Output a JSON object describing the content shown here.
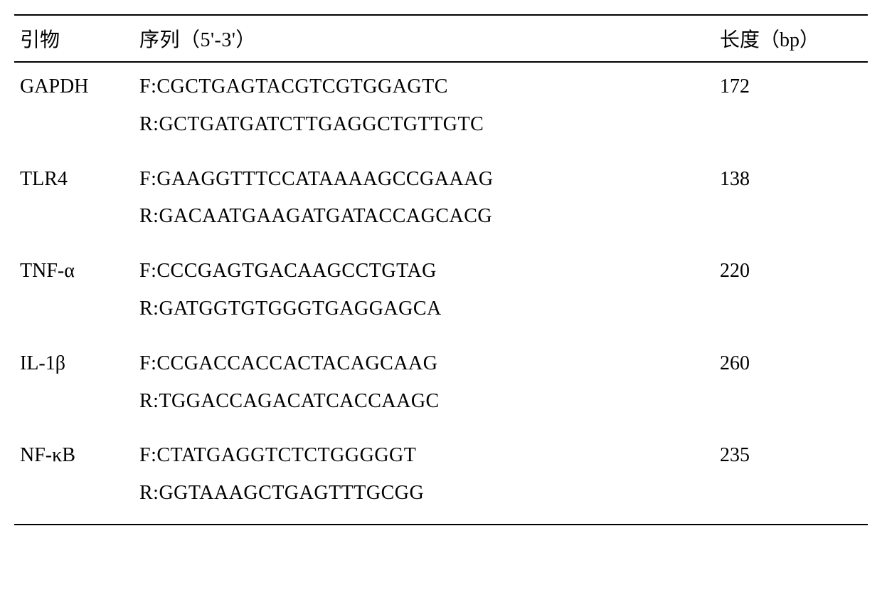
{
  "table": {
    "headers": {
      "primer": "引物",
      "sequence": "序列（5'-3'）",
      "length": "长度（bp）"
    },
    "rows": [
      {
        "primer": "GAPDH",
        "forward": "F:CGCTGAGTACGTCGTGGAGTC",
        "reverse": "R:GCTGATGATCTTGAGGCTGTTGTC",
        "length": "172"
      },
      {
        "primer": "TLR4",
        "forward": "F:GAAGGTTTCCATAAAAGCCGAAAG",
        "reverse": "R:GACAATGAAGATGATACCAGCACG",
        "length": "138"
      },
      {
        "primer": "TNF-α",
        "forward": "F:CCCGAGTGACAAGCCTGTAG",
        "reverse": "R:GATGGTGTGGGTGAGGAGCA",
        "length": "220"
      },
      {
        "primer": "IL-1β",
        "forward": "F:CCGACCACCACTACAGCAAG",
        "reverse": "R:TGGACCAGACATCACCAAGC",
        "length": "260"
      },
      {
        "primer": "NF-κB",
        "forward": "F:CTATGAGGTCTCTGGGGGT",
        "reverse": "R:GGTAAAGCTGAGTTTGCGG",
        "length": "235"
      }
    ]
  },
  "styling": {
    "background_color": "#ffffff",
    "text_color": "#000000",
    "border_color": "#000000",
    "border_width": 2,
    "font_family_main": "Times New Roman",
    "font_family_cjk": "SimSun",
    "header_fontsize": 28,
    "cell_fontsize": 28,
    "line_height": 1.6,
    "column_widths": {
      "primer": "14%",
      "sequence": "68%",
      "length": "18%"
    }
  }
}
